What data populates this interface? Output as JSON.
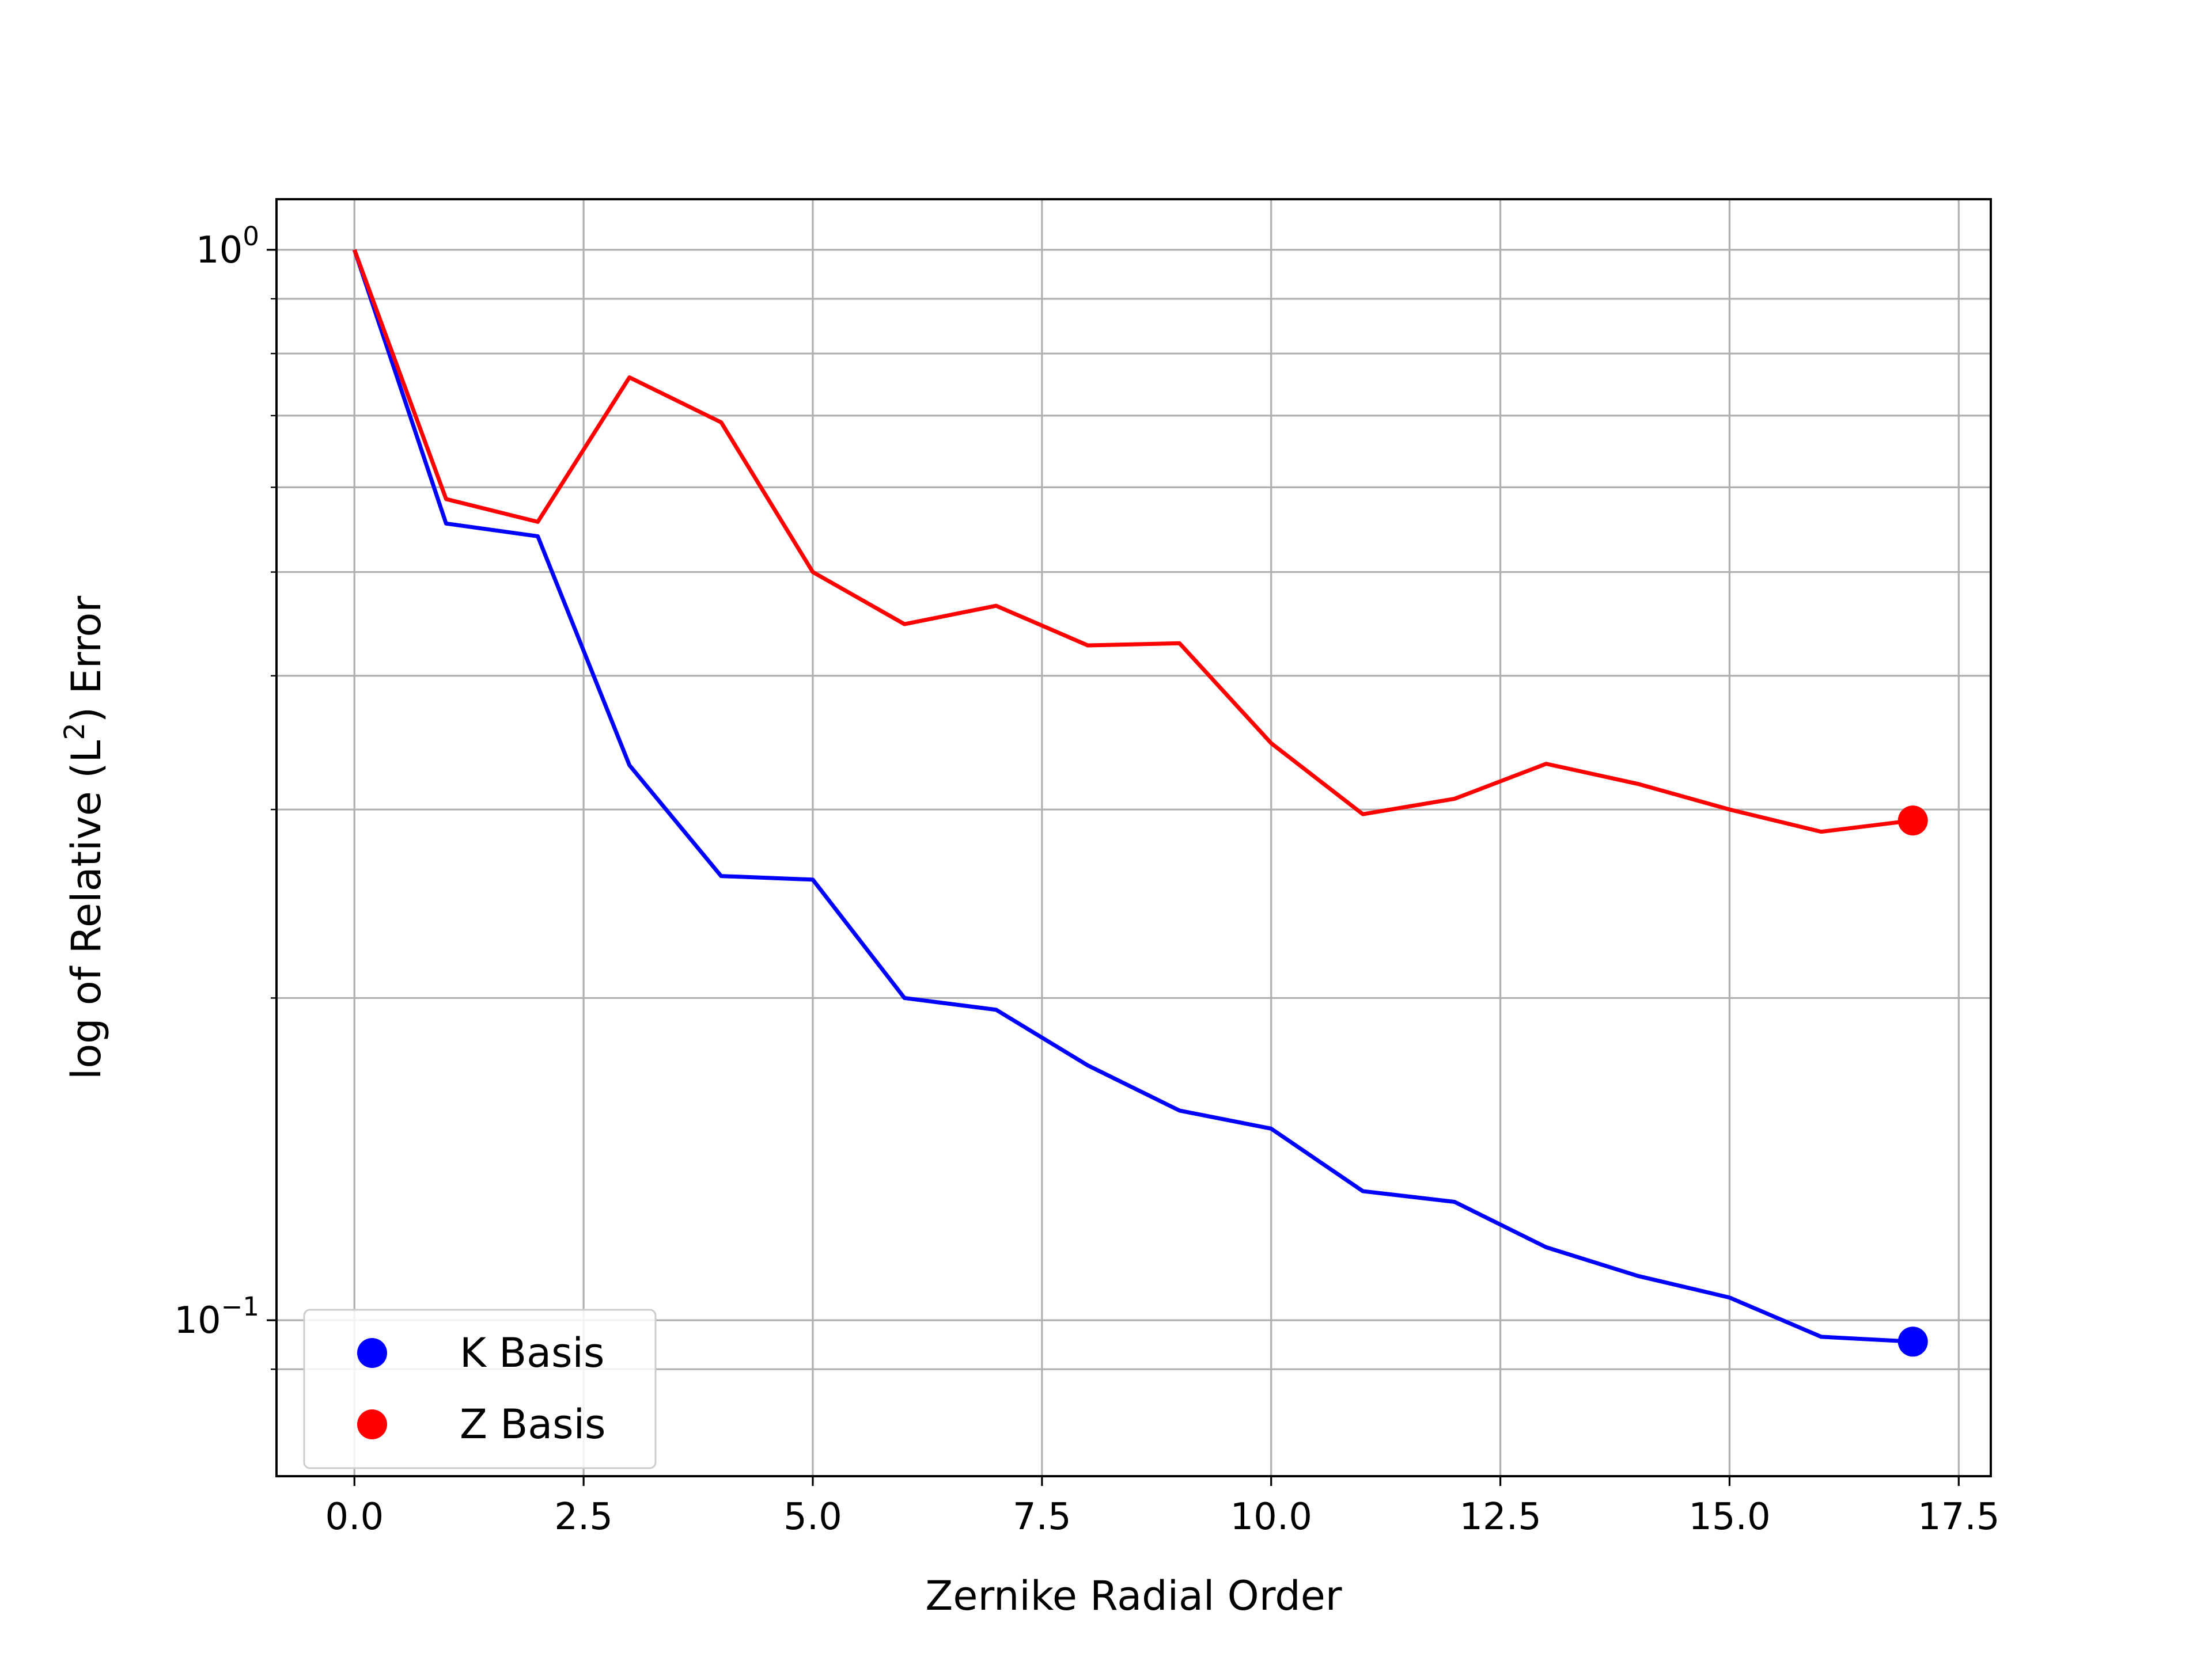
{
  "chart_data": {
    "type": "line",
    "title": "",
    "xlabel": "Zernike Radial Order",
    "ylabel": "log of Relative (L²) Error",
    "xlim": [
      -0.85,
      17.85
    ],
    "ylim": [
      0.0715,
      1.115
    ],
    "yscale": "log",
    "grid": true,
    "legend_position": "lower-left",
    "x_ticks": [
      0.0,
      2.5,
      5.0,
      7.5,
      10.0,
      12.5,
      15.0,
      17.5
    ],
    "x_tick_labels": [
      "0.0",
      "2.5",
      "5.0",
      "7.5",
      "10.0",
      "12.5",
      "15.0",
      "17.5"
    ],
    "y_major_ticks": [
      0.1,
      1.0
    ],
    "y_tick_labels": [
      {
        "base": "10",
        "exp": "−1"
      },
      {
        "base": "10",
        "exp": "0"
      }
    ],
    "y_minor_ticks": [
      0.09,
      0.2,
      0.3,
      0.4,
      0.5,
      0.6,
      0.7,
      0.8,
      0.9
    ],
    "x": [
      0,
      1,
      2,
      3,
      4,
      5,
      6,
      7,
      8,
      9,
      10,
      11,
      12,
      13,
      14,
      15,
      16,
      17
    ],
    "series": [
      {
        "name": "K Basis",
        "color": "#0000ff",
        "marker_at_last_point": true,
        "values": [
          1.0,
          0.555,
          0.54,
          0.33,
          0.26,
          0.258,
          0.2,
          0.195,
          0.173,
          0.157,
          0.151,
          0.132,
          0.129,
          0.117,
          0.11,
          0.105,
          0.0965,
          0.0955
        ]
      },
      {
        "name": "Z Basis",
        "color": "#ff0000",
        "marker_at_last_point": true,
        "values": [
          1.0,
          0.585,
          0.557,
          0.76,
          0.69,
          0.5,
          0.447,
          0.465,
          0.427,
          0.429,
          0.346,
          0.297,
          0.307,
          0.331,
          0.317,
          0.3,
          0.286,
          0.293
        ]
      }
    ]
  }
}
